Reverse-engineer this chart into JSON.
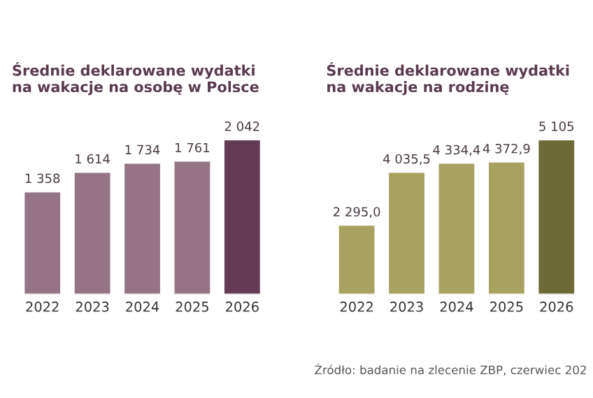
{
  "chart_data": [
    {
      "type": "bar",
      "title": "Średnie deklarowane wydatki\nna wakacje na osobę w Polsce",
      "categories": [
        "2022",
        "2023",
        "2024",
        "2025",
        "2026"
      ],
      "values": [
        1358,
        1614,
        1734,
        1761,
        2042
      ],
      "colors": [
        "#957486",
        "#957486",
        "#957486",
        "#957486",
        "#643a54"
      ],
      "value_labels": [
        "1 358",
        "1 614",
        "1 734",
        "1 761",
        "2 042"
      ],
      "grid": false,
      "legend": false
    },
    {
      "type": "bar",
      "title": "Średnie deklarowane wydatki\nna wakacje na rodzinę",
      "categories": [
        "2022",
        "2023",
        "2024",
        "2025",
        "2026"
      ],
      "values": [
        2295.0,
        4035.5,
        4334.4,
        4372.9,
        5105
      ],
      "colors": [
        "#a8a260",
        "#a8a260",
        "#a8a260",
        "#a8a260",
        "#6e6a38"
      ],
      "value_labels": [
        "2 295,0",
        "4 035,5",
        "4 334,4",
        "4 372,9",
        "5 105"
      ],
      "annotations": [
        "Źródło: badanie na zlecenie ZBP, czerwiec 202"
      ],
      "grid": false,
      "legend": false
    }
  ]
}
